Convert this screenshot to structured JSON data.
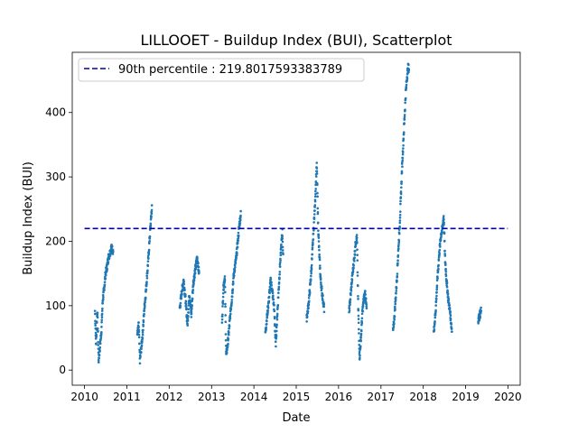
{
  "chart_data": {
    "type": "scatter",
    "title": "LILLOOET - Buildup Index (BUI), Scatterplot",
    "xlabel": "Date",
    "ylabel": "Buildup Index (BUI)",
    "xlim": [
      "2009-09-17",
      "2020-04-16"
    ],
    "ylim": [
      -23.5,
      493.5
    ],
    "x_ticks": [
      "2010",
      "2011",
      "2012",
      "2013",
      "2014",
      "2015",
      "2016",
      "2017",
      "2018",
      "2019",
      "2020"
    ],
    "y_ticks": [
      0,
      100,
      200,
      300,
      400
    ],
    "marker_color": "#1f77b4",
    "reference_line": {
      "label": "90th percentile : 219.8017593383789",
      "value": 219.8017593383789,
      "color": "#0000aa",
      "style": "dashed",
      "x_range": [
        "2010-01-01",
        "2019-12-31"
      ]
    },
    "legend": "top-left",
    "grid": false,
    "series_segments": [
      {
        "start": "2010-04-01",
        "end": "2010-09-05",
        "points": [
          [
            0,
            92
          ],
          [
            0.06,
            40
          ],
          [
            0.13,
            95
          ],
          [
            0.2,
            15
          ],
          [
            0.27,
            35
          ],
          [
            0.35,
            60
          ],
          [
            0.43,
            110
          ],
          [
            0.5,
            125
          ],
          [
            0.58,
            150
          ],
          [
            0.66,
            160
          ],
          [
            0.74,
            175
          ],
          [
            0.82,
            182
          ],
          [
            0.9,
            190
          ],
          [
            1,
            185
          ]
        ]
      },
      {
        "start": "2011-04-01",
        "end": "2011-08-05",
        "points": [
          [
            0,
            55
          ],
          [
            0.1,
            70
          ],
          [
            0.18,
            15
          ],
          [
            0.28,
            35
          ],
          [
            0.38,
            60
          ],
          [
            0.48,
            95
          ],
          [
            0.58,
            120
          ],
          [
            0.68,
            150
          ],
          [
            0.78,
            180
          ],
          [
            0.86,
            210
          ],
          [
            0.94,
            235
          ],
          [
            1,
            252
          ]
        ]
      },
      {
        "start": "2012-04-01",
        "end": "2012-09-15",
        "points": [
          [
            0,
            95
          ],
          [
            0.1,
            120
          ],
          [
            0.2,
            140
          ],
          [
            0.3,
            110
          ],
          [
            0.4,
            70
          ],
          [
            0.5,
            120
          ],
          [
            0.6,
            85
          ],
          [
            0.7,
            135
          ],
          [
            0.8,
            155
          ],
          [
            0.9,
            175
          ],
          [
            1,
            150
          ]
        ]
      },
      {
        "start": "2013-04-01",
        "end": "2013-09-10",
        "points": [
          [
            0,
            75
          ],
          [
            0.08,
            130
          ],
          [
            0.15,
            145
          ],
          [
            0.22,
            22
          ],
          [
            0.3,
            40
          ],
          [
            0.38,
            65
          ],
          [
            0.45,
            90
          ],
          [
            0.52,
            110
          ],
          [
            0.6,
            140
          ],
          [
            0.68,
            160
          ],
          [
            0.76,
            175
          ],
          [
            0.84,
            200
          ],
          [
            0.92,
            225
          ],
          [
            1,
            242
          ]
        ]
      },
      {
        "start": "2014-04-10",
        "end": "2014-09-10",
        "points": [
          [
            0,
            58
          ],
          [
            0.1,
            85
          ],
          [
            0.2,
            110
          ],
          [
            0.3,
            140
          ],
          [
            0.4,
            120
          ],
          [
            0.5,
            95
          ],
          [
            0.58,
            38
          ],
          [
            0.66,
            80
          ],
          [
            0.74,
            120
          ],
          [
            0.82,
            160
          ],
          [
            0.9,
            195
          ],
          [
            0.96,
            215
          ],
          [
            1,
            175
          ]
        ]
      },
      {
        "start": "2015-04-01",
        "end": "2015-08-30",
        "points": [
          [
            0,
            80
          ],
          [
            0.1,
            100
          ],
          [
            0.2,
            130
          ],
          [
            0.28,
            160
          ],
          [
            0.36,
            200
          ],
          [
            0.45,
            245
          ],
          [
            0.52,
            285
          ],
          [
            0.58,
            320
          ],
          [
            0.65,
            230
          ],
          [
            0.72,
            180
          ],
          [
            0.8,
            140
          ],
          [
            0.88,
            120
          ],
          [
            1,
            95
          ]
        ]
      },
      {
        "start": "2016-04-01",
        "end": "2016-08-30",
        "points": [
          [
            0,
            90
          ],
          [
            0.1,
            120
          ],
          [
            0.2,
            150
          ],
          [
            0.3,
            175
          ],
          [
            0.38,
            200
          ],
          [
            0.45,
            205
          ],
          [
            0.52,
            100
          ],
          [
            0.6,
            20
          ],
          [
            0.68,
            50
          ],
          [
            0.76,
            90
          ],
          [
            0.84,
            110
          ],
          [
            0.92,
            120
          ],
          [
            1,
            95
          ]
        ]
      },
      {
        "start": "2017-04-15",
        "end": "2017-08-30",
        "points": [
          [
            0,
            60
          ],
          [
            0.08,
            80
          ],
          [
            0.16,
            110
          ],
          [
            0.24,
            140
          ],
          [
            0.32,
            180
          ],
          [
            0.4,
            215
          ],
          [
            0.48,
            260
          ],
          [
            0.56,
            310
          ],
          [
            0.64,
            350
          ],
          [
            0.72,
            390
          ],
          [
            0.8,
            430
          ],
          [
            0.88,
            455
          ],
          [
            0.95,
            470
          ],
          [
            1,
            468
          ]
        ]
      },
      {
        "start": "2018-04-01",
        "end": "2018-09-05",
        "points": [
          [
            0,
            58
          ],
          [
            0.1,
            90
          ],
          [
            0.2,
            140
          ],
          [
            0.3,
            180
          ],
          [
            0.4,
            210
          ],
          [
            0.48,
            220
          ],
          [
            0.55,
            240
          ],
          [
            0.62,
            175
          ],
          [
            0.7,
            140
          ],
          [
            0.8,
            110
          ],
          [
            0.9,
            90
          ],
          [
            1,
            60
          ]
        ]
      },
      {
        "start": "2019-04-20",
        "end": "2019-05-15",
        "points": [
          [
            0,
            78
          ],
          [
            0.5,
            85
          ],
          [
            1,
            92
          ]
        ]
      }
    ]
  }
}
